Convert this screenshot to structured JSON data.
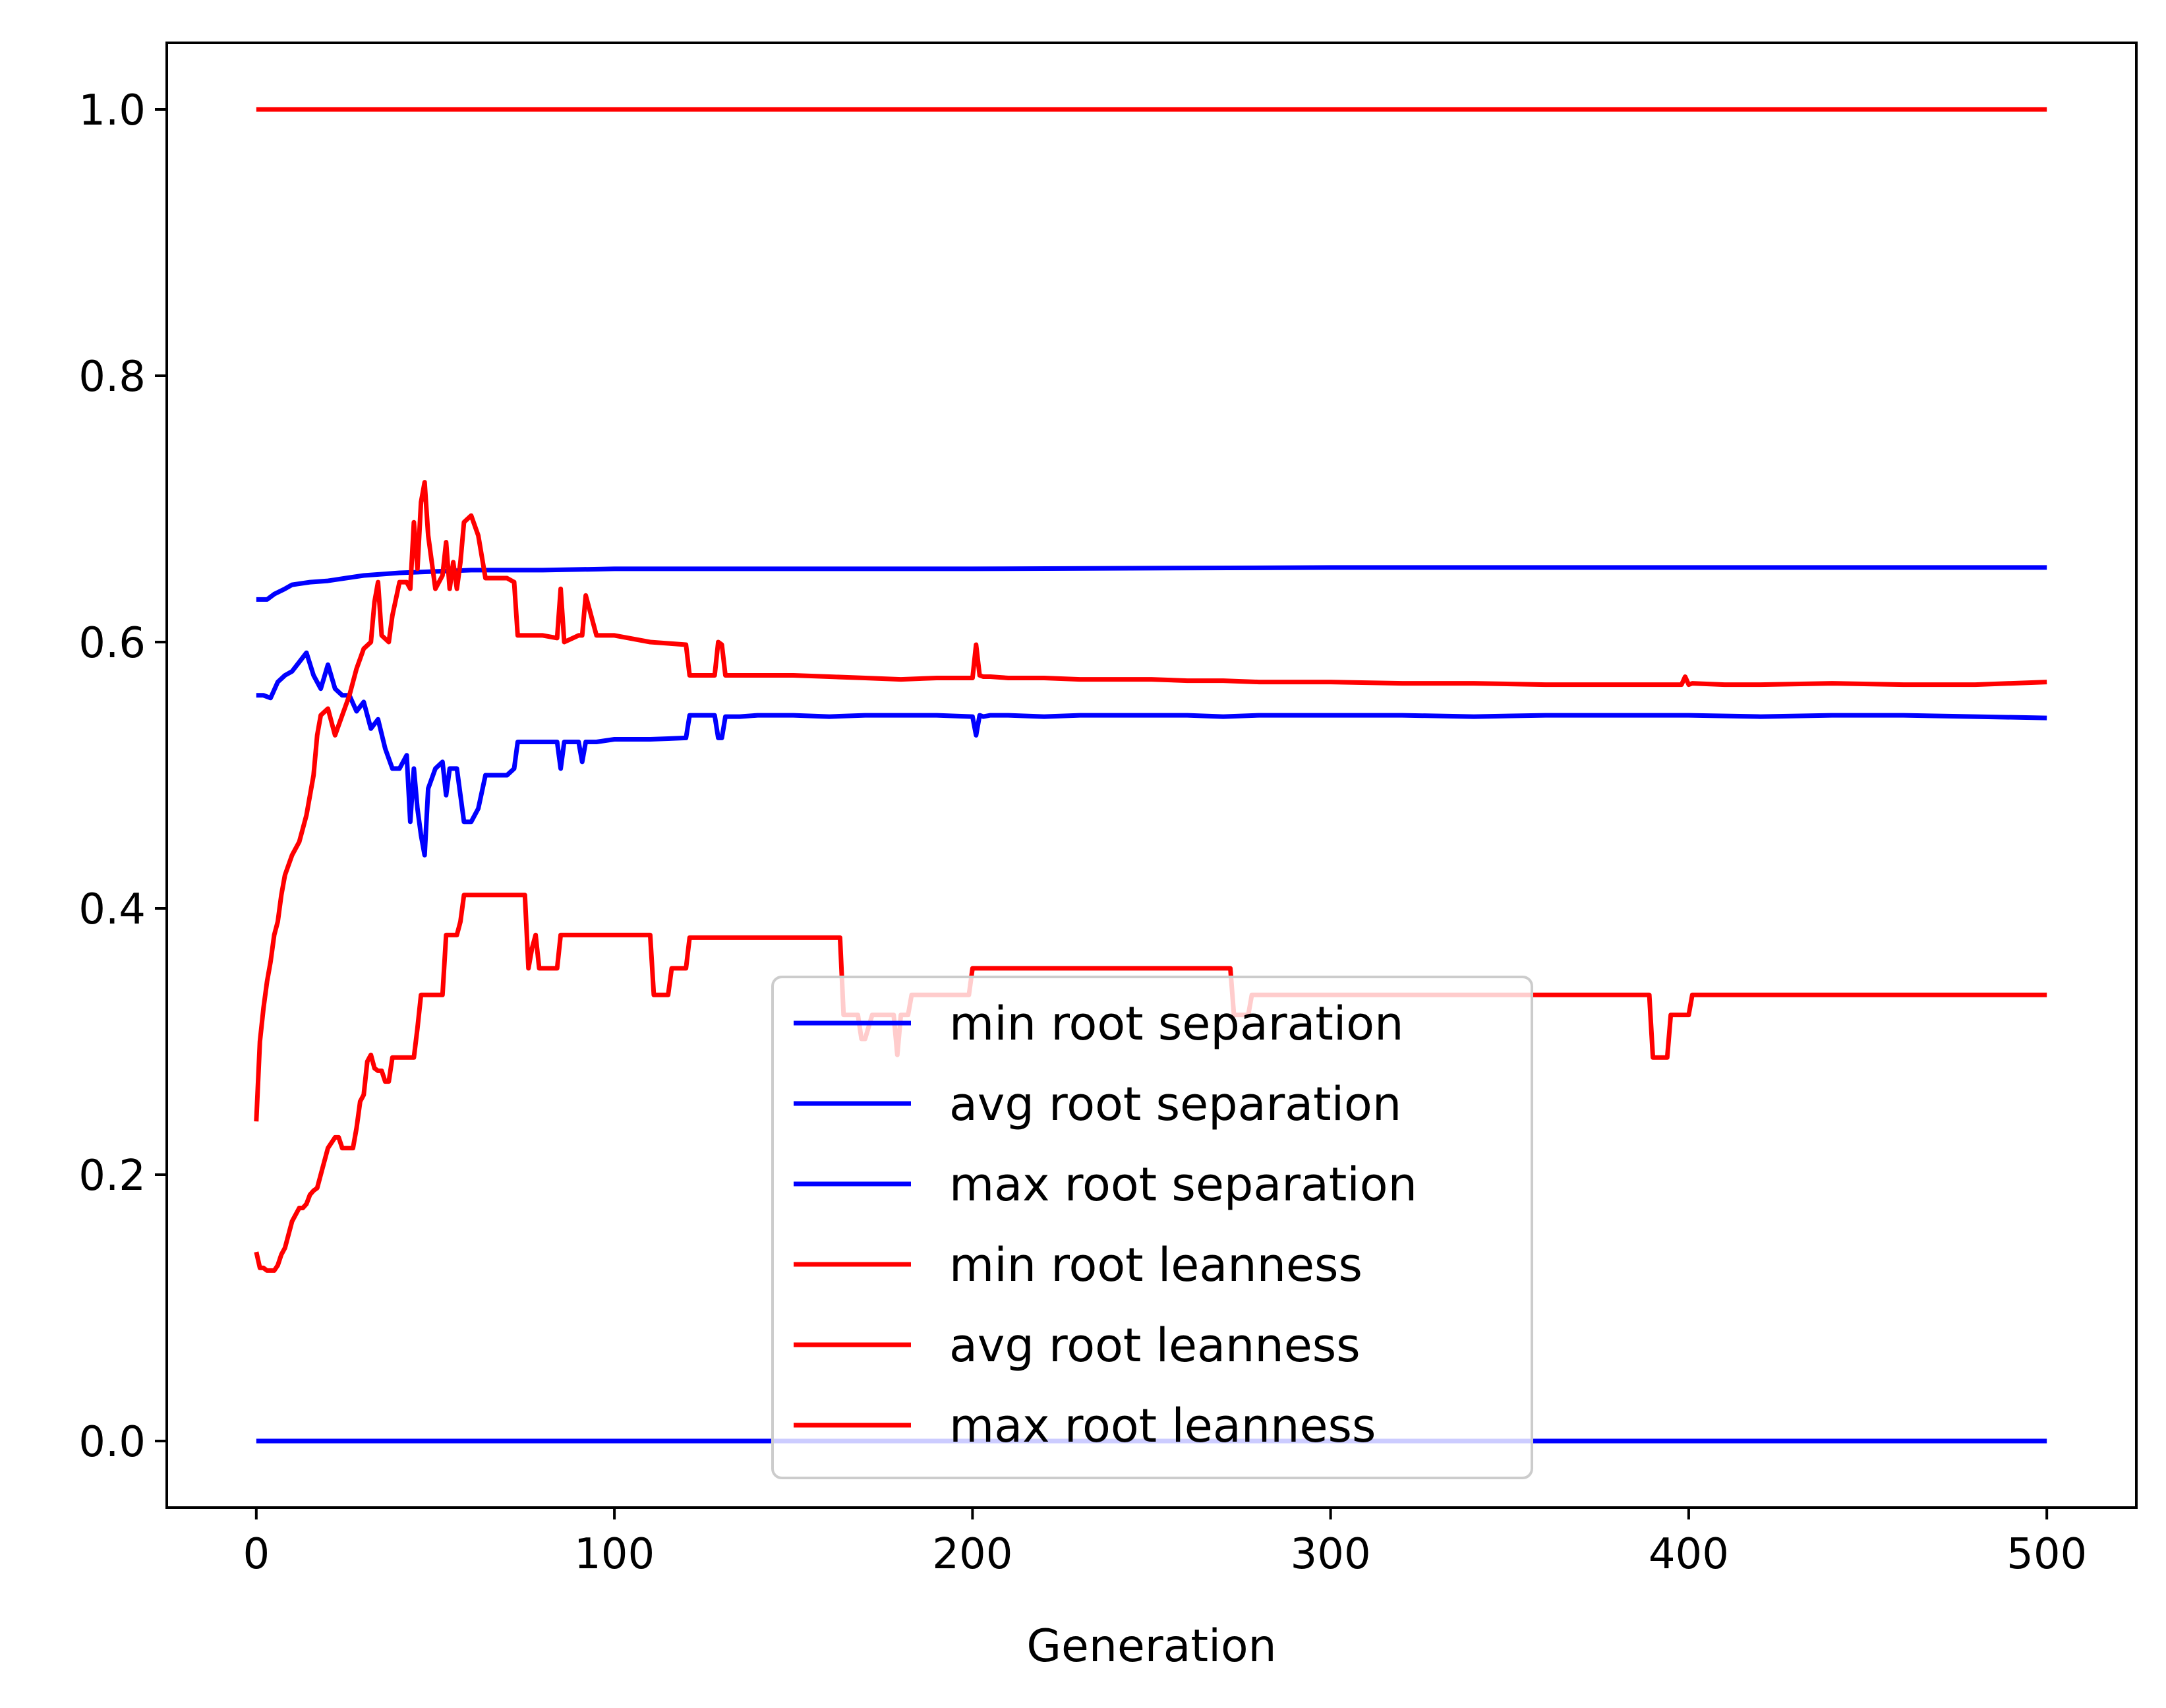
{
  "colors": {
    "separation": "#0000ff",
    "leanness": "#ff0000",
    "axis": "#000000",
    "legend_edge": "#cccccc"
  },
  "chart_data": {
    "type": "line",
    "title": "",
    "xlabel": "Generation",
    "ylabel": "",
    "xlim": [
      -25,
      525
    ],
    "ylim": [
      -0.05,
      1.05
    ],
    "grid": false,
    "legend_placement": "lower center",
    "xticks": [
      0,
      100,
      200,
      300,
      400,
      500
    ],
    "xtick_labels": [
      "0",
      "100",
      "200",
      "300",
      "400",
      "500"
    ],
    "yticks": [
      0.0,
      0.2,
      0.4,
      0.6,
      0.8,
      1.0
    ],
    "ytick_labels": [
      "0.0",
      "0.2",
      "0.4",
      "0.6",
      "0.8",
      "1.0"
    ],
    "series": [
      {
        "name": "min root separation",
        "color": "#0000ff",
        "x": [
          0,
          500
        ],
        "y": [
          0.0,
          0.0
        ]
      },
      {
        "name": "avg root separation",
        "color": "#0000ff",
        "x": [
          0,
          2,
          4,
          6,
          8,
          10,
          12,
          14,
          16,
          18,
          20,
          22,
          24,
          26,
          28,
          30,
          32,
          34,
          36,
          38,
          40,
          42,
          43,
          44,
          45,
          46,
          47,
          48,
          50,
          52,
          53,
          54,
          56,
          58,
          60,
          62,
          64,
          66,
          70,
          72,
          73,
          75,
          80,
          84,
          85,
          86,
          90,
          91,
          92,
          95,
          100,
          110,
          120,
          121,
          122,
          125,
          128,
          129,
          130,
          131,
          135,
          140,
          150,
          160,
          170,
          180,
          190,
          200,
          201,
          202,
          203,
          205,
          210,
          220,
          230,
          240,
          250,
          260,
          270,
          280,
          290,
          300,
          320,
          340,
          360,
          380,
          400,
          420,
          440,
          460,
          480,
          500
        ],
        "y": [
          0.56,
          0.56,
          0.558,
          0.57,
          0.575,
          0.578,
          0.585,
          0.592,
          0.575,
          0.565,
          0.583,
          0.565,
          0.56,
          0.56,
          0.548,
          0.555,
          0.535,
          0.542,
          0.52,
          0.505,
          0.505,
          0.515,
          0.465,
          0.505,
          0.475,
          0.455,
          0.44,
          0.49,
          0.505,
          0.51,
          0.485,
          0.505,
          0.505,
          0.465,
          0.465,
          0.475,
          0.5,
          0.5,
          0.5,
          0.505,
          0.525,
          0.525,
          0.525,
          0.525,
          0.505,
          0.525,
          0.525,
          0.51,
          0.525,
          0.525,
          0.527,
          0.527,
          0.528,
          0.545,
          0.545,
          0.545,
          0.545,
          0.528,
          0.528,
          0.544,
          0.544,
          0.545,
          0.545,
          0.544,
          0.545,
          0.545,
          0.545,
          0.544,
          0.53,
          0.545,
          0.544,
          0.545,
          0.545,
          0.544,
          0.545,
          0.545,
          0.545,
          0.545,
          0.544,
          0.545,
          0.545,
          0.545,
          0.545,
          0.544,
          0.545,
          0.545,
          0.545,
          0.544,
          0.545,
          0.545,
          0.544,
          0.543
        ]
      },
      {
        "name": "max root separation",
        "color": "#0000ff",
        "x": [
          0,
          3,
          5,
          8,
          10,
          15,
          20,
          25,
          30,
          35,
          40,
          50,
          60,
          80,
          100,
          150,
          200,
          300,
          400,
          500
        ],
        "y": [
          0.632,
          0.632,
          0.636,
          0.64,
          0.643,
          0.645,
          0.646,
          0.648,
          0.65,
          0.651,
          0.652,
          0.653,
          0.654,
          0.654,
          0.655,
          0.655,
          0.655,
          0.656,
          0.656,
          0.656
        ]
      },
      {
        "name": "min root leanness",
        "color": "#ff0000",
        "x": [
          0,
          1,
          2,
          3,
          4,
          5,
          6,
          7,
          8,
          9,
          10,
          12,
          13,
          14,
          15,
          16,
          17,
          18,
          20,
          22,
          23,
          24,
          26,
          27,
          28,
          29,
          30,
          31,
          32,
          33,
          34,
          35,
          36,
          37,
          38,
          40,
          44,
          45,
          46,
          50,
          52,
          53,
          56,
          57,
          58,
          62,
          70,
          75,
          76,
          77,
          78,
          79,
          80,
          84,
          85,
          86,
          100,
          110,
          111,
          115,
          116,
          120,
          121,
          122,
          140,
          150,
          163,
          164,
          165,
          168,
          169,
          170,
          172,
          173,
          175,
          178,
          179,
          180,
          182,
          183,
          185,
          195,
          199,
          200,
          240,
          260,
          272,
          273,
          277,
          278,
          280,
          300,
          320,
          340,
          360,
          385,
          389,
          390,
          394,
          395,
          396,
          400,
          401,
          402,
          500
        ],
        "y": [
          0.142,
          0.13,
          0.13,
          0.128,
          0.128,
          0.128,
          0.132,
          0.14,
          0.145,
          0.155,
          0.165,
          0.175,
          0.175,
          0.178,
          0.185,
          0.188,
          0.19,
          0.2,
          0.22,
          0.228,
          0.228,
          0.22,
          0.22,
          0.22,
          0.235,
          0.255,
          0.26,
          0.285,
          0.29,
          0.28,
          0.278,
          0.278,
          0.27,
          0.27,
          0.288,
          0.288,
          0.288,
          0.31,
          0.335,
          0.335,
          0.335,
          0.38,
          0.38,
          0.39,
          0.41,
          0.41,
          0.41,
          0.41,
          0.355,
          0.37,
          0.38,
          0.355,
          0.355,
          0.355,
          0.38,
          0.38,
          0.38,
          0.38,
          0.335,
          0.335,
          0.355,
          0.355,
          0.378,
          0.378,
          0.378,
          0.378,
          0.378,
          0.32,
          0.32,
          0.32,
          0.302,
          0.302,
          0.32,
          0.32,
          0.32,
          0.32,
          0.29,
          0.32,
          0.32,
          0.335,
          0.335,
          0.335,
          0.335,
          0.355,
          0.355,
          0.355,
          0.355,
          0.32,
          0.32,
          0.335,
          0.335,
          0.335,
          0.335,
          0.335,
          0.335,
          0.335,
          0.335,
          0.288,
          0.288,
          0.32,
          0.32,
          0.32,
          0.335,
          0.335,
          0.335
        ]
      },
      {
        "name": "avg root leanness",
        "color": "#ff0000",
        "x": [
          0,
          1,
          2,
          3,
          4,
          5,
          6,
          7,
          8,
          10,
          12,
          14,
          16,
          17,
          18,
          20,
          22,
          24,
          26,
          28,
          30,
          32,
          33,
          34,
          35,
          37,
          38,
          40,
          42,
          43,
          44,
          45,
          46,
          47,
          48,
          50,
          52,
          53,
          54,
          55,
          56,
          57,
          58,
          60,
          62,
          64,
          70,
          72,
          73,
          75,
          80,
          84,
          85,
          86,
          90,
          91,
          92,
          95,
          100,
          110,
          120,
          121,
          122,
          128,
          129,
          130,
          131,
          140,
          150,
          160,
          170,
          180,
          190,
          200,
          201,
          202,
          203,
          205,
          210,
          220,
          230,
          240,
          250,
          260,
          270,
          280,
          290,
          300,
          320,
          340,
          360,
          380,
          398,
          399,
          400,
          401,
          410,
          420,
          440,
          460,
          480,
          500
        ],
        "y": [
          0.24,
          0.3,
          0.325,
          0.345,
          0.36,
          0.38,
          0.39,
          0.41,
          0.425,
          0.44,
          0.45,
          0.47,
          0.5,
          0.53,
          0.545,
          0.55,
          0.53,
          0.545,
          0.56,
          0.58,
          0.595,
          0.6,
          0.63,
          0.645,
          0.605,
          0.6,
          0.62,
          0.645,
          0.645,
          0.64,
          0.69,
          0.655,
          0.705,
          0.72,
          0.68,
          0.64,
          0.65,
          0.675,
          0.64,
          0.66,
          0.64,
          0.66,
          0.69,
          0.695,
          0.68,
          0.648,
          0.648,
          0.645,
          0.605,
          0.605,
          0.605,
          0.603,
          0.64,
          0.6,
          0.605,
          0.605,
          0.635,
          0.605,
          0.605,
          0.6,
          0.598,
          0.575,
          0.575,
          0.575,
          0.6,
          0.598,
          0.575,
          0.575,
          0.575,
          0.574,
          0.573,
          0.572,
          0.573,
          0.573,
          0.598,
          0.575,
          0.574,
          0.574,
          0.573,
          0.573,
          0.572,
          0.572,
          0.572,
          0.571,
          0.571,
          0.57,
          0.57,
          0.57,
          0.569,
          0.569,
          0.568,
          0.568,
          0.568,
          0.574,
          0.568,
          0.569,
          0.568,
          0.568,
          0.569,
          0.568,
          0.568,
          0.57
        ]
      },
      {
        "name": "max root leanness",
        "color": "#ff0000",
        "x": [
          0,
          500
        ],
        "y": [
          1.0,
          1.0
        ]
      }
    ]
  }
}
